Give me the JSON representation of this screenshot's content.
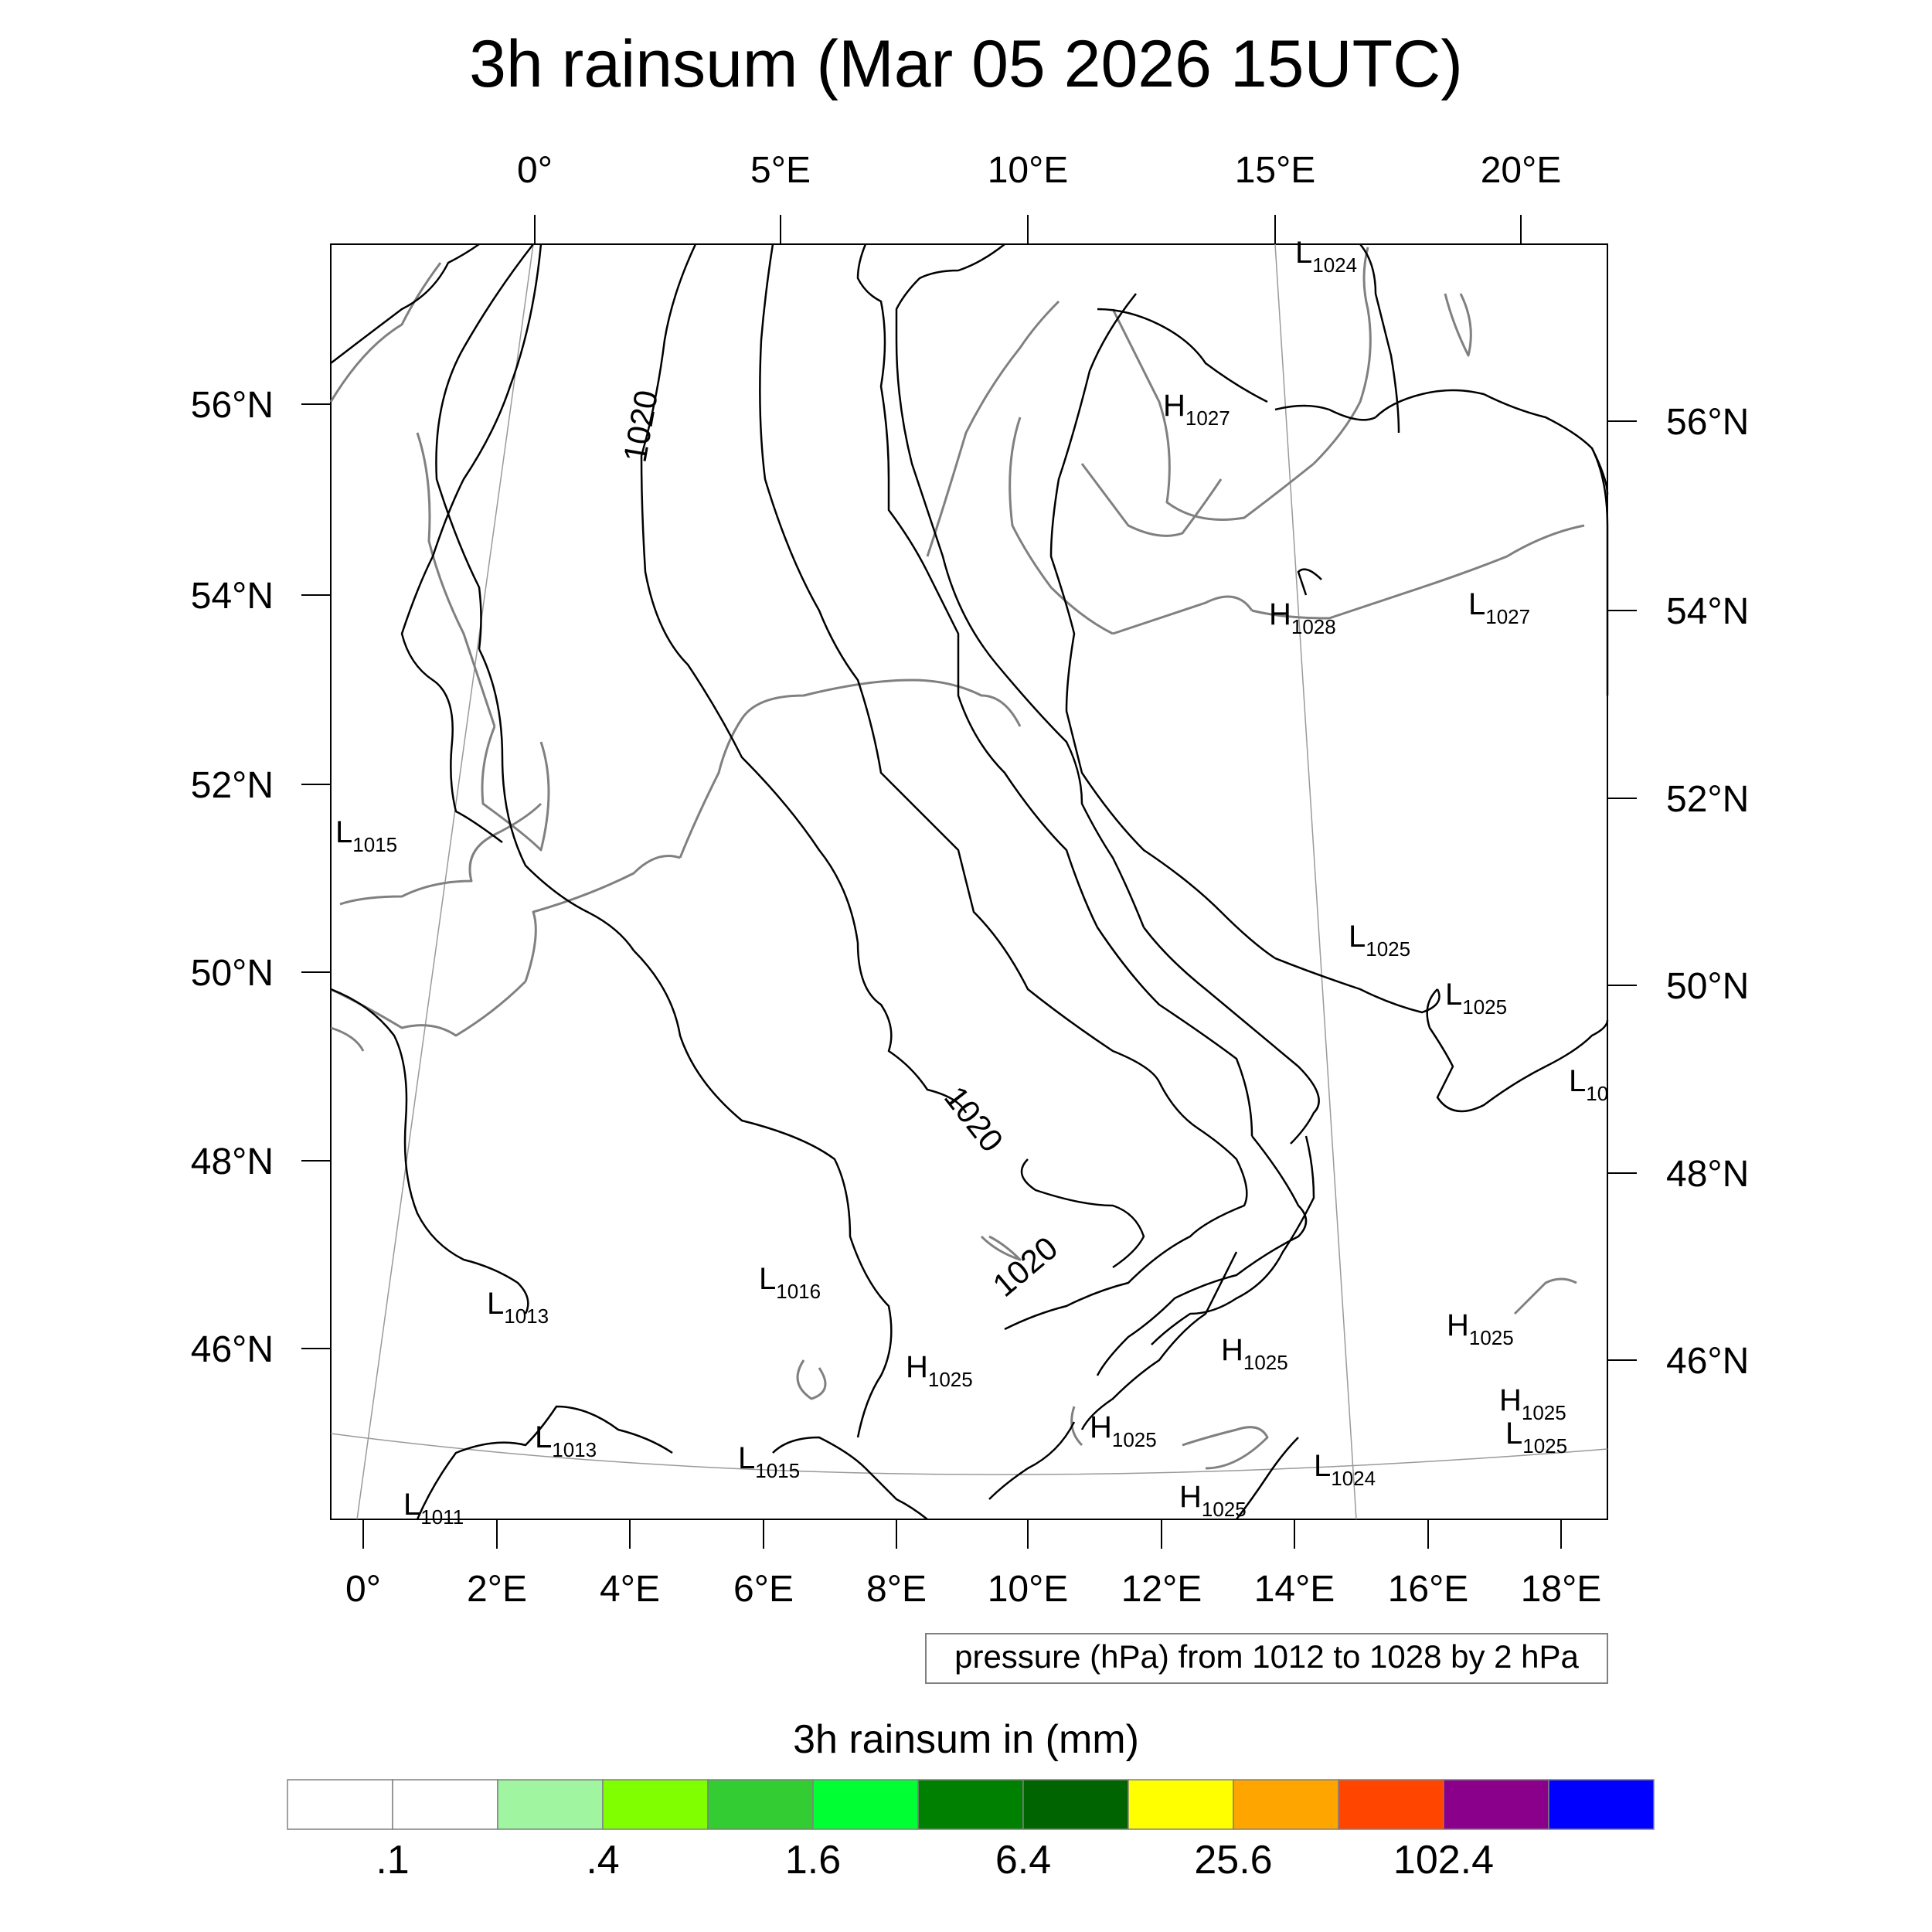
{
  "title": "3h rainsum (Mar 05 2026 15UTC)",
  "top_axis_labels": [
    "0°",
    "5°E",
    "10°E",
    "15°E",
    "20°E"
  ],
  "bottom_axis_labels": [
    "0°",
    "2°E",
    "4°E",
    "6°E",
    "8°E",
    "10°E",
    "12°E",
    "14°E",
    "16°E",
    "18°E"
  ],
  "left_axis_labels": [
    "56°N",
    "54°N",
    "52°N",
    "50°N",
    "48°N",
    "46°N"
  ],
  "right_axis_labels": [
    "56°N",
    "54°N",
    "52°N",
    "50°N",
    "48°N",
    "46°N"
  ],
  "contour_labels": [
    "1020",
    "1020",
    "1020"
  ],
  "pressure_centers": [
    {
      "type": "L",
      "value": "1024"
    },
    {
      "type": "H",
      "value": "1027"
    },
    {
      "type": "H",
      "value": "1028"
    },
    {
      "type": "L",
      "value": "1027"
    },
    {
      "type": "L",
      "value": "1015"
    },
    {
      "type": "L",
      "value": "1025"
    },
    {
      "type": "L",
      "value": "1025"
    },
    {
      "type": "L",
      "value": "10"
    },
    {
      "type": "L",
      "value": "1016"
    },
    {
      "type": "L",
      "value": "1013"
    },
    {
      "type": "H",
      "value": "1025"
    },
    {
      "type": "H",
      "value": "1025"
    },
    {
      "type": "H",
      "value": "1025"
    },
    {
      "type": "L",
      "value": "1013"
    },
    {
      "type": "H",
      "value": "1025"
    },
    {
      "type": "H",
      "value": "1025"
    },
    {
      "type": "L",
      "value": "1025"
    },
    {
      "type": "L",
      "value": "1015"
    },
    {
      "type": "L",
      "value": "1024"
    },
    {
      "type": "H",
      "value": "1025"
    },
    {
      "type": "L",
      "value": "1011"
    }
  ],
  "pressure_info": "pressure (hPa) from 1012 to 1028 by 2 hPa",
  "colorbar": {
    "title": "3h rainsum in (mm)",
    "colors": [
      "#ffffff",
      "#ffffff",
      "#a0f5a0",
      "#80ff00",
      "#33cc33",
      "#00ff33",
      "#008000",
      "#006400",
      "#ffff00",
      "#ffa500",
      "#ff4500",
      "#8b008b",
      "#0000ff"
    ],
    "labels": [
      ".1",
      ".4",
      "1.6",
      "6.4",
      "25.6",
      "102.4"
    ]
  }
}
